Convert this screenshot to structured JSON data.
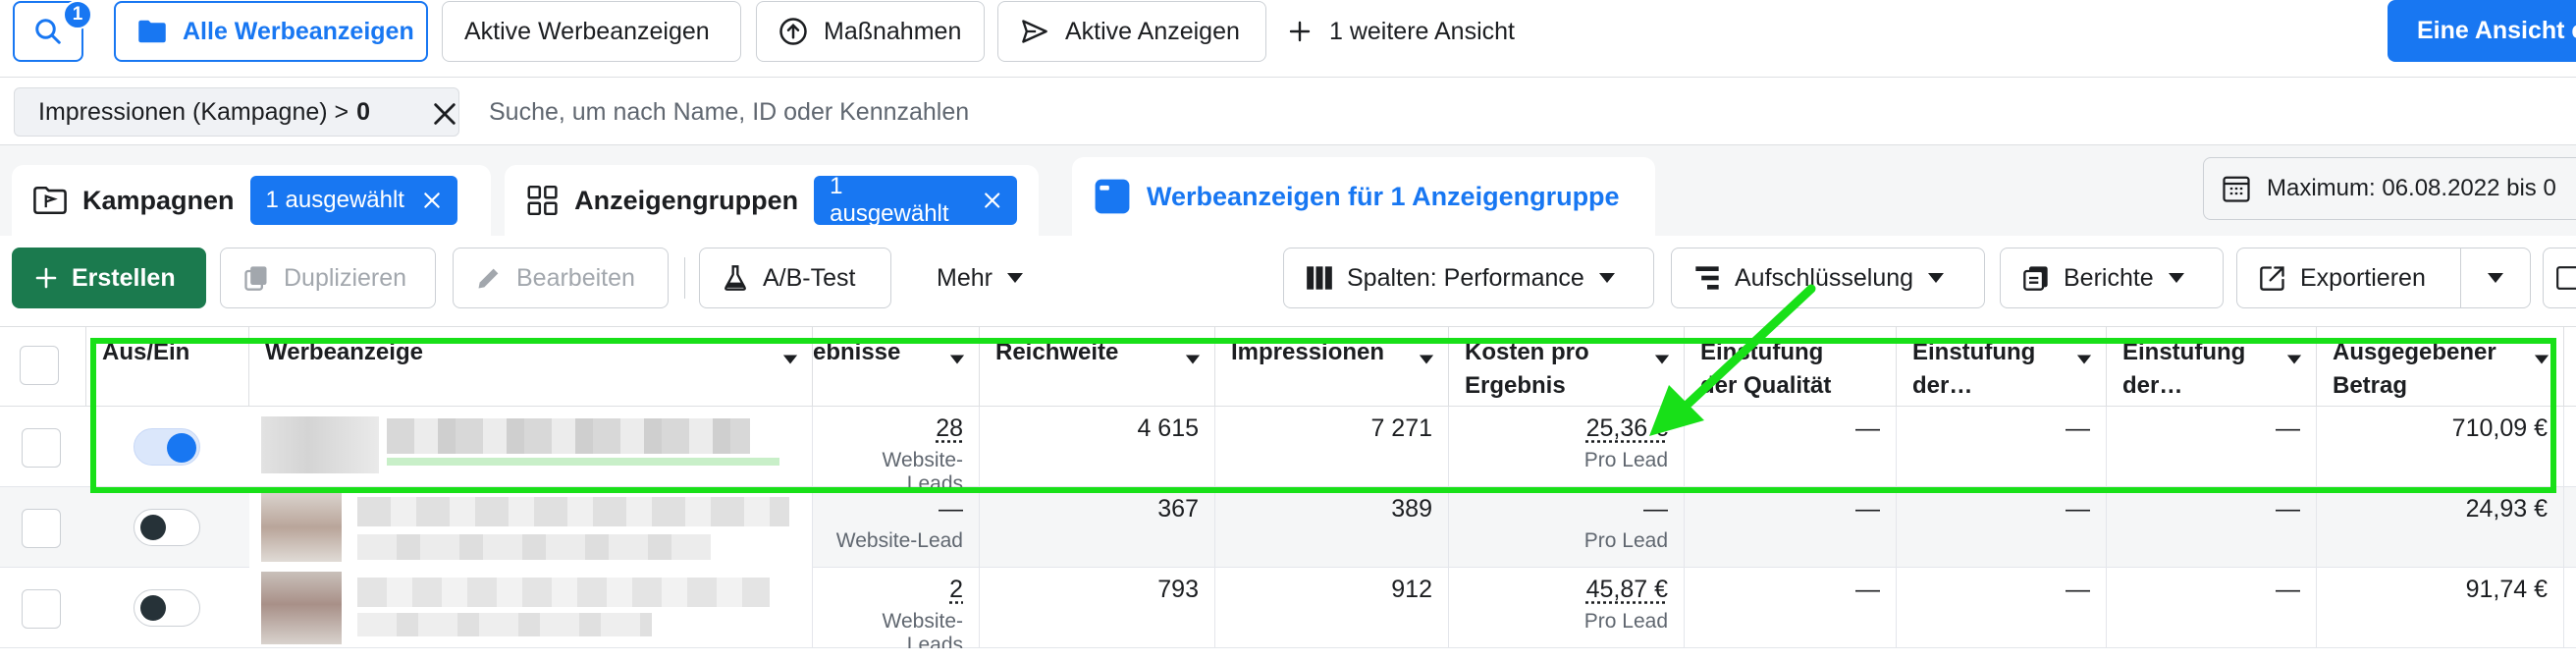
{
  "views": {
    "search_badge": "1",
    "tabs": [
      {
        "label": "Alle Werbeanzeigen",
        "active": true
      },
      {
        "label": "Aktive Werbeanzeigen",
        "active": false
      },
      {
        "label": "Maßnahmen",
        "active": false
      },
      {
        "label": "Aktive Anzeigen",
        "active": false
      }
    ],
    "add_view_label": "1 weitere Ansicht",
    "primary_button": "Eine Ansicht e"
  },
  "filter": {
    "chip_label": "Impressionen (Kampagne) >",
    "chip_value": "0",
    "search_placeholder": "Suche, um nach Name, ID oder Kennzahlen"
  },
  "levels": {
    "campaigns_label": "Kampagnen",
    "campaigns_selected": "1 ausgewählt",
    "adsets_label": "Anzeigengruppen",
    "adsets_selected": "1 ausgewählt",
    "ads_label": "Werbeanzeigen für 1 Anzeigengruppe",
    "date_range": "Maximum: 06.08.2022 bis 0"
  },
  "toolbar": {
    "create": "Erstellen",
    "duplicate": "Duplizieren",
    "edit": "Bearbeiten",
    "ab_test": "A/B-Test",
    "more": "Mehr",
    "columns": "Spalten: Performance",
    "breakdown": "Aufschlüsselung",
    "reports": "Berichte",
    "export": "Exportieren"
  },
  "table": {
    "headers": {
      "toggle": "Aus/Ein",
      "ad": "Werbeanzeige",
      "results": "ebnisse",
      "reach": "Reichweite",
      "impressions": "Impressionen",
      "cost_l1": "Kosten pro",
      "cost_l2": "Ergebnis",
      "quality_l1": "Einstufung",
      "quality_l2": "der Qualität",
      "eng_l1": "Einstufung",
      "eng_l2": "der…",
      "conv_l1": "Einstufung",
      "conv_l2": "der…",
      "spent_l1": "Ausgegebener",
      "spent_l2": "Betrag"
    },
    "rows": [
      {
        "on": true,
        "results": "28",
        "results_sub": "Website-Leads",
        "reach": "4 615",
        "impressions": "7 271",
        "cost": "25,36 €",
        "cost_sub": "Pro Lead",
        "q1": "—",
        "q2": "—",
        "q3": "—",
        "spent": "710,09 €"
      },
      {
        "on": false,
        "results": "—",
        "results_sub": "Website-Lead",
        "reach": "367",
        "impressions": "389",
        "cost": "—",
        "cost_sub": "Pro Lead",
        "q1": "—",
        "q2": "—",
        "q3": "—",
        "spent": "24,93 €"
      },
      {
        "on": false,
        "results": "2",
        "results_sub": "Website-Leads",
        "reach": "793",
        "impressions": "912",
        "cost": "45,87 €",
        "cost_sub": "Pro Lead",
        "q1": "—",
        "q2": "—",
        "q3": "—",
        "spent": "91,74 €"
      }
    ]
  },
  "colors": {
    "accent": "#1877f2",
    "create_button": "#1b7a4e",
    "highlight": "#18e018"
  }
}
